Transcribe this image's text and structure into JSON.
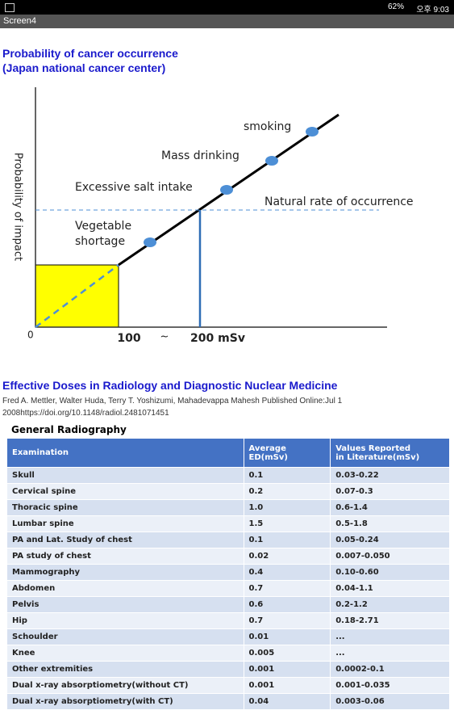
{
  "status_bar": {
    "battery": "62%",
    "time": "오후 9:03"
  },
  "app_bar": {
    "title": "Screen4"
  },
  "section1": {
    "title_line1": "Probability of cancer occurrence",
    "title_line2": "(Japan national cancer center)"
  },
  "diagram": {
    "y_axis_label": "Probability of impact",
    "origin": "0",
    "x_label_1": "100",
    "x_label_sep": "~",
    "x_label_2": "200 mSv",
    "labels": {
      "smoking": "smoking",
      "mass_drinking": "Mass drinking",
      "salt": "Excessive salt intake",
      "natural": "Natural rate of occurrence",
      "vegetable_1": "Vegetable",
      "vegetable_2": "shortage"
    }
  },
  "section2": {
    "title": "Effective Doses in Radiology and Diagnostic Nuclear Medicine",
    "citation_line1": "Fred A. Mettler, Walter Huda, Terry T. Yoshizumi, Mahadevappa Mahesh Published Online:Jul 1",
    "citation_line2": "2008https://doi.org/10.1148/radiol.2481071451"
  },
  "table": {
    "caption": "General Radiography",
    "headers": [
      [
        "Examination"
      ],
      [
        "Average",
        "ED(mSv)"
      ],
      [
        "Values Reported",
        "in Literature(mSv)"
      ]
    ],
    "rows": [
      [
        "Skull",
        "0.1",
        "0.03-0.22"
      ],
      [
        "Cervical spine",
        "0.2",
        "0.07-0.3"
      ],
      [
        "Thoracic spine",
        "1.0",
        "0.6-1.4"
      ],
      [
        "Lumbar spine",
        "1.5",
        "0.5-1.8"
      ],
      [
        "PA and Lat. Study of chest",
        "0.1",
        "0.05-0.24"
      ],
      [
        "PA study of chest",
        "0.02",
        "0.007-0.050"
      ],
      [
        "Mammography",
        "0.4",
        "0.10-0.60"
      ],
      [
        "Abdomen",
        "0.7",
        "0.04-1.1"
      ],
      [
        "Pelvis",
        "0.6",
        "0.2-1.2"
      ],
      [
        "Hip",
        "0.7",
        "0.18-2.71"
      ],
      [
        "Schoulder",
        "0.01",
        "..."
      ],
      [
        "Knee",
        "0.005",
        "..."
      ],
      [
        "Other extremities",
        "0.001",
        "0.0002-0.1"
      ],
      [
        "Dual x-ray absorptiometry(without CT)",
        "0.001",
        "0.001-0.035"
      ],
      [
        "Dual x-ray absorptiometry(with CT)",
        "0.04",
        "0.003-0.06"
      ]
    ]
  }
}
